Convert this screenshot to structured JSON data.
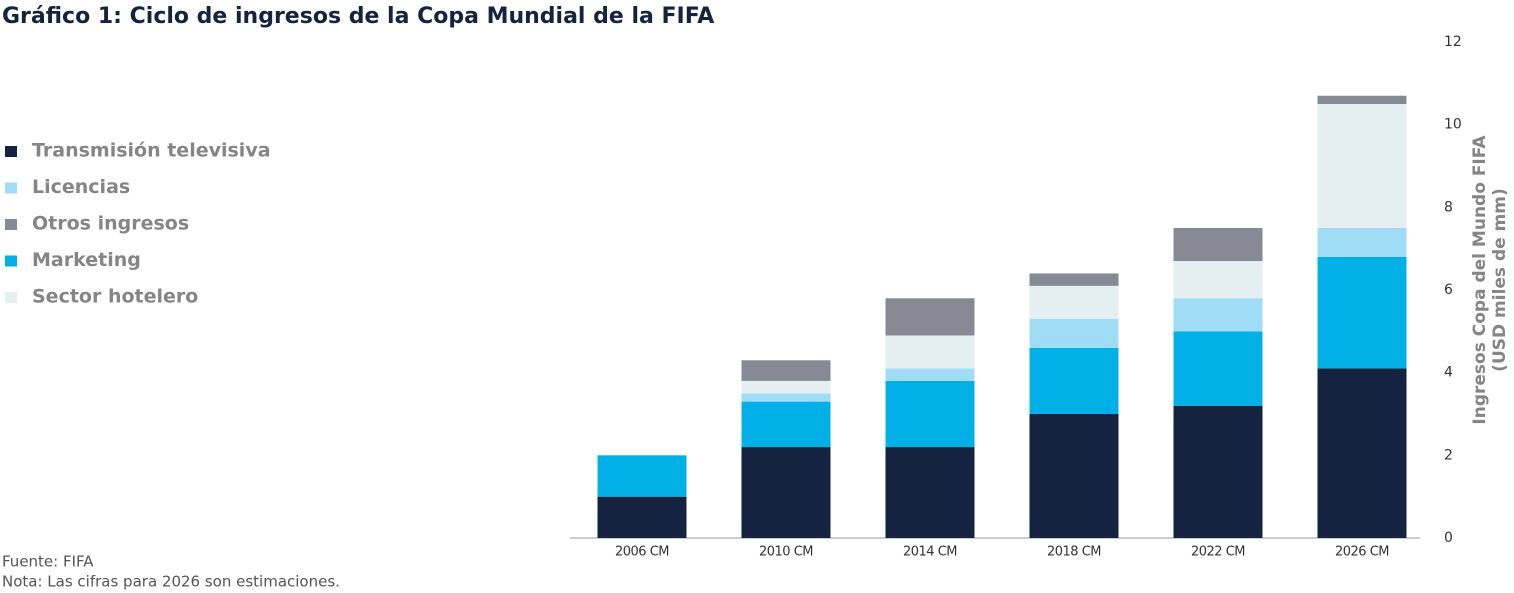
{
  "chart_data": {
    "type": "stacked_bar",
    "title": "Gráfico 1: Ciclo de ingresos de la Copa Mundial de la FIFA",
    "ylabel": [
      "Ingresos Copa del Mundo FIFA",
      "(USD miles de mm)"
    ],
    "categories": [
      "2006 CM",
      "2010 CM",
      "2014 CM",
      "2018 CM",
      "2022 CM",
      "2026 CM"
    ],
    "series": [
      {
        "name": "Transmisión televisiva",
        "color": "#14233f",
        "values": [
          1.0,
          2.2,
          2.2,
          3.0,
          3.2,
          4.1
        ]
      },
      {
        "name": "Licencias",
        "color": "#a0dcf5",
        "values": [
          0,
          0.2,
          0.3,
          0.7,
          0.8,
          0.7
        ]
      },
      {
        "name": "Otros ingresos",
        "color": "#878a94",
        "values": [
          0,
          0.5,
          0.9,
          0.3,
          0.8,
          0.2
        ]
      },
      {
        "name": "Marketing",
        "color": "#00b0e6",
        "values": [
          1.0,
          1.1,
          1.6,
          1.6,
          1.8,
          2.7
        ]
      },
      {
        "name": "Sector hotelero",
        "color": "#e5eff2",
        "values": [
          0,
          0.3,
          0.8,
          0.8,
          0.9,
          3.0
        ]
      }
    ],
    "stack_order": [
      0,
      3,
      1,
      4,
      2
    ],
    "ylim": [
      0,
      12
    ],
    "yticks": [
      0,
      2,
      4,
      6,
      8,
      10,
      12
    ],
    "y_axis_side": "right",
    "grid": false,
    "source": "Fuente: FIFA",
    "note": "Nota: Las cifras para 2026 son estimaciones."
  }
}
